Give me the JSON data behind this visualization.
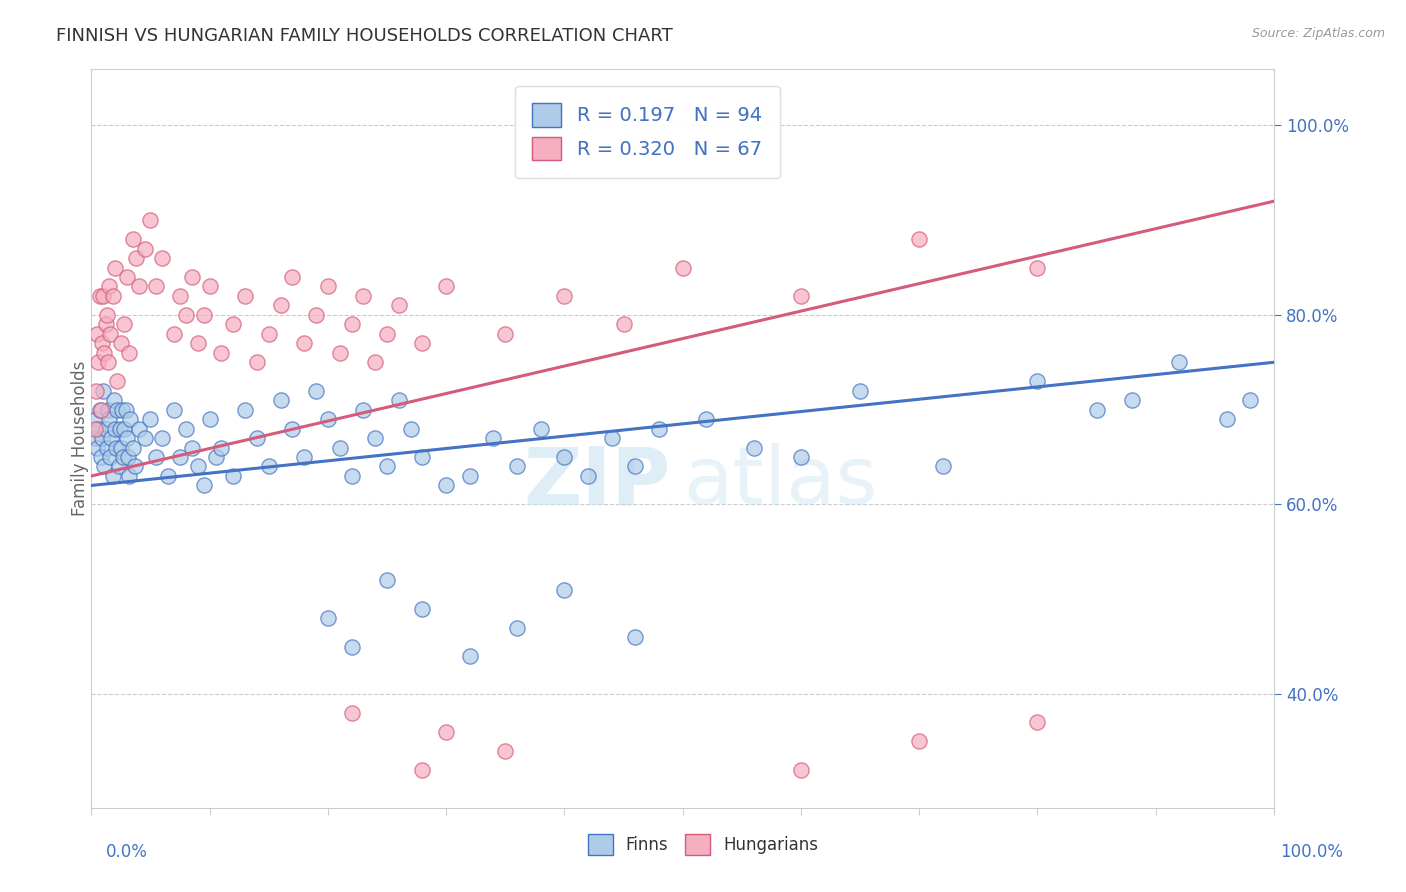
{
  "title": "FINNISH VS HUNGARIAN FAMILY HOUSEHOLDS CORRELATION CHART",
  "source": "Source: ZipAtlas.com",
  "ylabel": "Family Households",
  "legend_bottom": [
    "Finns",
    "Hungarians"
  ],
  "finn_R": 0.197,
  "finn_N": 94,
  "hung_R": 0.32,
  "hung_N": 67,
  "finn_color": "#aecce8",
  "hung_color": "#f5afc0",
  "finn_line_color": "#4472c4",
  "hung_line_color": "#d45b7a",
  "watermark_zip": "ZIP",
  "watermark_atlas": "atlas",
  "watermark_color": "#c5dff0",
  "ylim": [
    28,
    106
  ],
  "xlim": [
    0,
    100
  ],
  "yticks": [
    40.0,
    60.0,
    80.0,
    100.0
  ],
  "background_color": "#ffffff",
  "grid_color": "#cccccc",
  "finn_x": [
    0.3,
    0.4,
    0.5,
    0.6,
    0.7,
    0.8,
    0.9,
    1.0,
    1.1,
    1.2,
    1.3,
    1.4,
    1.5,
    1.6,
    1.7,
    1.8,
    1.9,
    2.0,
    2.1,
    2.2,
    2.3,
    2.4,
    2.5,
    2.6,
    2.7,
    2.8,
    2.9,
    3.0,
    3.1,
    3.2,
    3.3,
    3.5,
    3.7,
    4.0,
    4.5,
    5.0,
    5.5,
    6.0,
    6.5,
    7.0,
    7.5,
    8.0,
    8.5,
    9.0,
    9.5,
    10.0,
    10.5,
    11.0,
    12.0,
    13.0,
    14.0,
    15.0,
    16.0,
    17.0,
    18.0,
    19.0,
    20.0,
    21.0,
    22.0,
    23.0,
    24.0,
    25.0,
    26.0,
    27.0,
    28.0,
    30.0,
    32.0,
    34.0,
    36.0,
    38.0,
    40.0,
    42.0,
    44.0,
    46.0,
    48.0,
    52.0,
    56.0,
    60.0,
    65.0,
    72.0,
    80.0,
    85.0,
    88.0,
    92.0,
    96.0,
    98.0,
    20.0,
    22.0,
    25.0,
    28.0,
    32.0,
    36.0,
    40.0,
    46.0
  ],
  "finn_y": [
    67,
    69,
    66,
    68,
    70,
    65,
    67,
    72,
    64,
    68,
    66,
    70,
    69,
    65,
    67,
    63,
    71,
    68,
    66,
    70,
    64,
    68,
    66,
    70,
    65,
    68,
    70,
    67,
    65,
    63,
    69,
    66,
    64,
    68,
    67,
    69,
    65,
    67,
    63,
    70,
    65,
    68,
    66,
    64,
    62,
    69,
    65,
    66,
    63,
    70,
    67,
    64,
    71,
    68,
    65,
    72,
    69,
    66,
    63,
    70,
    67,
    64,
    71,
    68,
    65,
    62,
    63,
    67,
    64,
    68,
    65,
    63,
    67,
    64,
    68,
    69,
    66,
    65,
    72,
    64,
    73,
    70,
    71,
    75,
    69,
    71,
    48,
    45,
    52,
    49,
    44,
    47,
    51,
    46
  ],
  "hung_x": [
    0.3,
    0.4,
    0.5,
    0.6,
    0.7,
    0.8,
    0.9,
    1.0,
    1.1,
    1.2,
    1.3,
    1.4,
    1.5,
    1.6,
    1.8,
    2.0,
    2.2,
    2.5,
    2.8,
    3.0,
    3.2,
    3.5,
    3.8,
    4.0,
    4.5,
    5.0,
    5.5,
    6.0,
    7.0,
    7.5,
    8.0,
    8.5,
    9.0,
    9.5,
    10.0,
    11.0,
    12.0,
    13.0,
    14.0,
    15.0,
    16.0,
    17.0,
    18.0,
    19.0,
    20.0,
    21.0,
    22.0,
    23.0,
    24.0,
    25.0,
    26.0,
    28.0,
    30.0,
    35.0,
    40.0,
    45.0,
    50.0,
    60.0,
    70.0,
    80.0,
    22.0,
    30.0,
    35.0,
    28.0,
    60.0,
    70.0,
    80.0
  ],
  "hung_y": [
    68,
    72,
    78,
    75,
    82,
    70,
    77,
    82,
    76,
    79,
    80,
    75,
    83,
    78,
    82,
    85,
    73,
    77,
    79,
    84,
    76,
    88,
    86,
    83,
    87,
    90,
    83,
    86,
    78,
    82,
    80,
    84,
    77,
    80,
    83,
    76,
    79,
    82,
    75,
    78,
    81,
    84,
    77,
    80,
    83,
    76,
    79,
    82,
    75,
    78,
    81,
    77,
    83,
    78,
    82,
    79,
    85,
    82,
    88,
    85,
    38,
    36,
    34,
    32,
    32,
    35,
    37
  ],
  "finn_trendline": [
    62.0,
    75.0
  ],
  "hung_trendline": [
    63.0,
    92.0
  ]
}
